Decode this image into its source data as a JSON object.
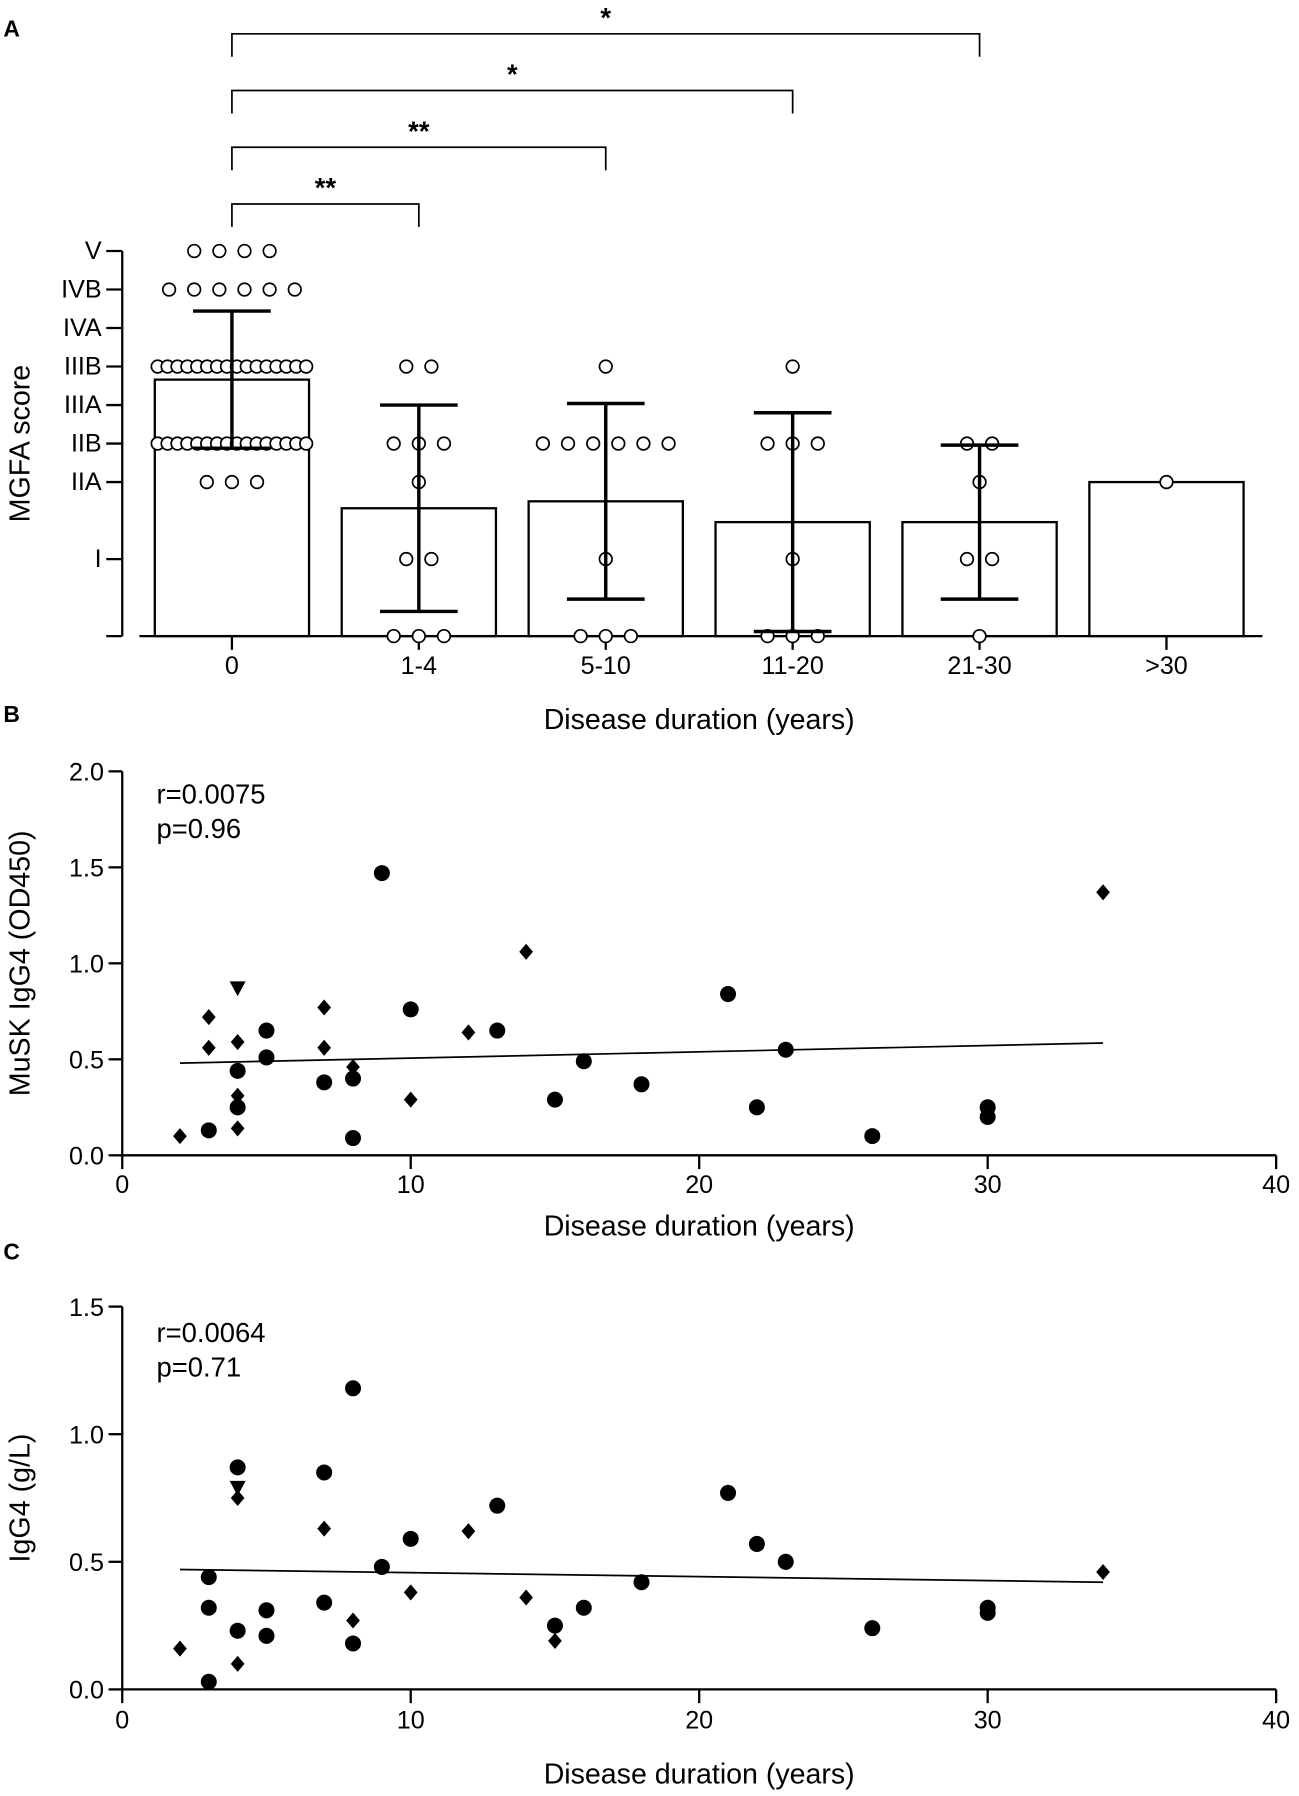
{
  "chart_data": [
    {
      "type": "bar",
      "panel_label": "A",
      "ylabel": "MGFA score",
      "xlabel": "Disease duration (years)",
      "categories": [
        "0",
        "1-4",
        "5-10",
        "11-20",
        "21-30",
        ">30"
      ],
      "values": [
        3.33,
        1.66,
        1.75,
        1.48,
        1.48,
        2
      ],
      "errors": [
        0.89,
        1.34,
        1.27,
        1.42,
        1.0,
        null
      ],
      "color": "#ffffff",
      "points": [
        [
          5,
          5,
          5,
          5,
          4.5,
          4.5,
          4.5,
          4.5,
          4.5,
          4.5,
          3.5,
          3.5,
          3.5,
          3.5,
          3.5,
          3.5,
          3.5,
          3.5,
          3.5,
          3.5,
          3.5,
          3.5,
          3.5,
          3.5,
          3.5,
          3.5,
          2.5,
          2.5,
          2.5,
          2.5,
          2.5,
          2.5,
          2.5,
          2.5,
          2.5,
          2.5,
          2.5,
          2.5,
          2.5,
          2.5,
          2.5,
          2.5,
          2,
          2,
          2
        ],
        [
          3.5,
          3.5,
          2.5,
          2.5,
          2.5,
          2,
          1,
          1,
          0,
          0,
          0
        ],
        [
          3.5,
          2.5,
          2.5,
          2.5,
          2.5,
          2.5,
          2.5,
          1,
          0,
          0,
          0
        ],
        [
          3.5,
          2.5,
          2.5,
          2.5,
          1,
          0,
          0,
          0
        ],
        [
          2.5,
          2.5,
          2,
          1,
          1,
          0
        ],
        [
          2
        ]
      ],
      "comparisons": [
        {
          "label": "**"
        },
        {
          "label": "**"
        },
        {
          "label": "*"
        },
        {
          "label": "*"
        }
      ],
      "ylim": [
        0,
        5
      ],
      "yticks": [
        {
          "value": 1,
          "label": "I"
        },
        {
          "value": 2,
          "label": "IIA"
        },
        {
          "value": 2.5,
          "label": "IIB"
        },
        {
          "value": 3,
          "label": "IIIA"
        },
        {
          "value": 3.5,
          "label": "IIIB"
        },
        {
          "value": 4,
          "label": "IVA"
        },
        {
          "value": 4.5,
          "label": "IVB"
        },
        {
          "value": 5,
          "label": "V"
        }
      ]
    },
    {
      "type": "scatter",
      "panel_label": "B",
      "ylabel": "MuSK IgG4 (OD450)",
      "xlabel": "Disease duration (years)",
      "annotations": [
        "r=0.0075",
        "p=0.96"
      ],
      "xlim": [
        0,
        40
      ],
      "xticks": [
        0,
        10,
        20,
        30,
        40
      ],
      "ylim": [
        0,
        2
      ],
      "yticks": [
        {
          "value": 0,
          "label": "0.0"
        },
        0.5,
        {
          "value": 1,
          "label": "1.0"
        },
        1.5,
        {
          "value": 2,
          "label": "2.0"
        }
      ],
      "color": "#000000",
      "series": [
        {
          "marker": "circle",
          "x": [
            3,
            4,
            4,
            5,
            5,
            7,
            8,
            8,
            9,
            10,
            13,
            15,
            16,
            18,
            21,
            22,
            23,
            26,
            30,
            30
          ],
          "y": [
            0.13,
            0.44,
            0.25,
            0.65,
            0.51,
            0.38,
            0.4,
            0.09,
            1.47,
            0.76,
            0.65,
            0.29,
            0.49,
            0.37,
            0.84,
            0.25,
            0.55,
            0.1,
            0.25,
            0.2
          ]
        },
        {
          "marker": "diamond",
          "x": [
            2,
            3,
            3,
            4,
            4,
            4,
            7,
            7,
            8,
            10,
            12,
            14,
            34
          ],
          "y": [
            0.1,
            0.72,
            0.56,
            0.59,
            0.31,
            0.14,
            0.77,
            0.56,
            0.46,
            0.29,
            0.64,
            1.06,
            1.37
          ]
        },
        {
          "marker": "triangle",
          "x": [
            4
          ],
          "y": [
            0.87
          ]
        }
      ],
      "fit": {
        "x": [
          2,
          34
        ],
        "y": [
          0.48,
          0.585
        ]
      }
    },
    {
      "type": "scatter",
      "panel_label": "C",
      "ylabel": "IgG4 (g/L)",
      "xlabel": "Disease duration (years)",
      "annotations": [
        "r=0.0064",
        "p=0.71"
      ],
      "xlim": [
        0,
        40
      ],
      "xticks": [
        0,
        10,
        20,
        30,
        40
      ],
      "ylim": [
        0,
        1.5
      ],
      "yticks": [
        {
          "value": 0,
          "label": "0.0"
        },
        0.5,
        {
          "value": 1,
          "label": "1.0"
        },
        1.5
      ],
      "color": "#000000",
      "series": [
        {
          "marker": "circle",
          "x": [
            3,
            3,
            3,
            4,
            4,
            5,
            5,
            7,
            7,
            8,
            8,
            9,
            10,
            13,
            15,
            16,
            18,
            21,
            22,
            23,
            26,
            30,
            30
          ],
          "y": [
            0.03,
            0.32,
            0.44,
            0.87,
            0.23,
            0.31,
            0.21,
            0.85,
            0.34,
            1.18,
            0.18,
            0.48,
            0.59,
            0.72,
            0.25,
            0.32,
            0.42,
            0.77,
            0.57,
            0.5,
            0.24,
            0.32,
            0.3
          ]
        },
        {
          "marker": "diamond",
          "x": [
            2,
            4,
            4,
            7,
            8,
            10,
            12,
            14,
            15,
            34
          ],
          "y": [
            0.16,
            0.75,
            0.1,
            0.63,
            0.27,
            0.38,
            0.62,
            0.36,
            0.19,
            0.46
          ]
        },
        {
          "marker": "triangle",
          "x": [
            4
          ],
          "y": [
            0.79
          ]
        }
      ],
      "fit": {
        "x": [
          2,
          34
        ],
        "y": [
          0.47,
          0.42
        ]
      }
    }
  ]
}
